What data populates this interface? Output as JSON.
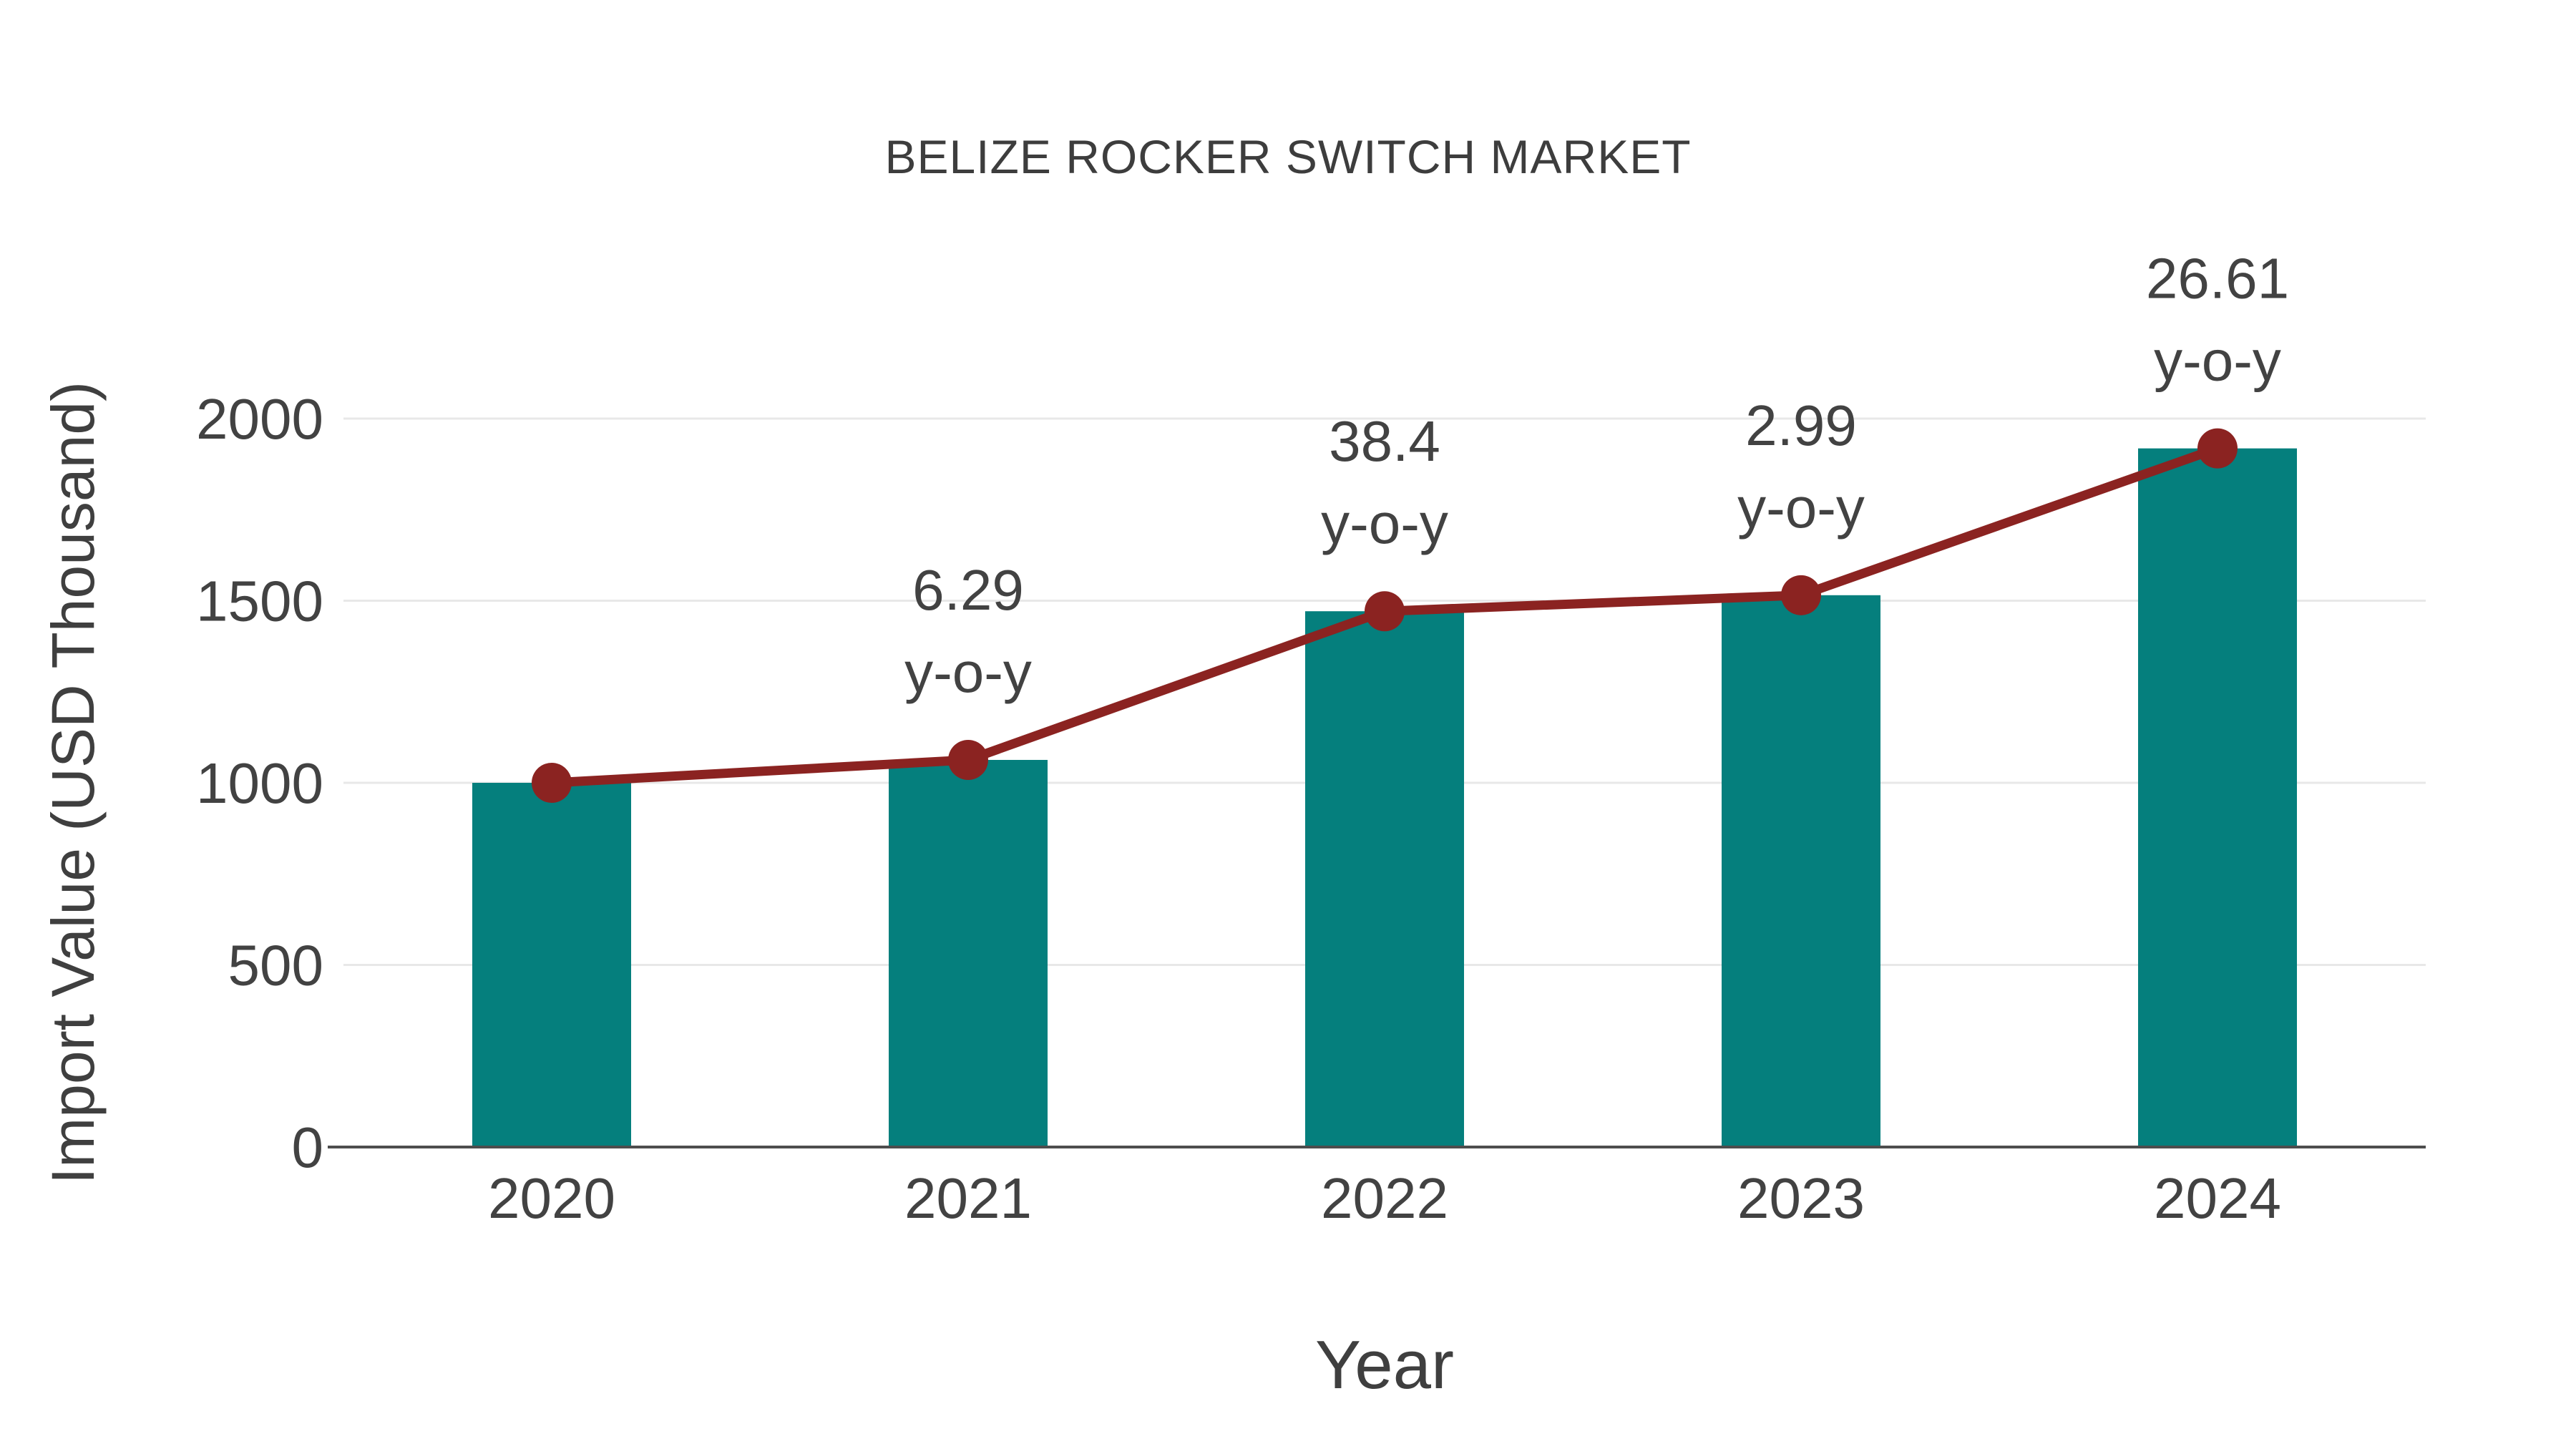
{
  "page": {
    "background": "#ffffff"
  },
  "colors": {
    "bar": "#057f7d",
    "line": "#8b2321",
    "grid": "#e8e8e8",
    "axis": "#4d4d4d",
    "text": "#404040"
  },
  "chart_data": {
    "type": "bar",
    "title": "BELIZE ROCKER SWITCH MARKET",
    "xlabel": "Year",
    "ylabel": "Import Value (USD Thousand)",
    "categories": [
      "2020",
      "2021",
      "2022",
      "2023",
      "2024"
    ],
    "series": [
      {
        "name": "Import Value (USD Thousand)",
        "type": "bar",
        "color": "#057f7d",
        "values": [
          1000,
          1062.9,
          1471.1,
          1515.1,
          1918.2
        ]
      },
      {
        "name": "y-o-y",
        "type": "line",
        "color": "#8b2321",
        "values": [
          1000,
          1062.9,
          1471.1,
          1515.1,
          1918.2
        ],
        "point_labels": [
          "",
          "6.29",
          "38.4",
          "2.99",
          "26.61"
        ],
        "point_label_suffix": "y-o-y"
      }
    ],
    "ylim": [
      0,
      2000
    ],
    "yticks": [
      "0",
      "500",
      "1000",
      "1500",
      "2000"
    ],
    "grid": true,
    "legend": false
  }
}
